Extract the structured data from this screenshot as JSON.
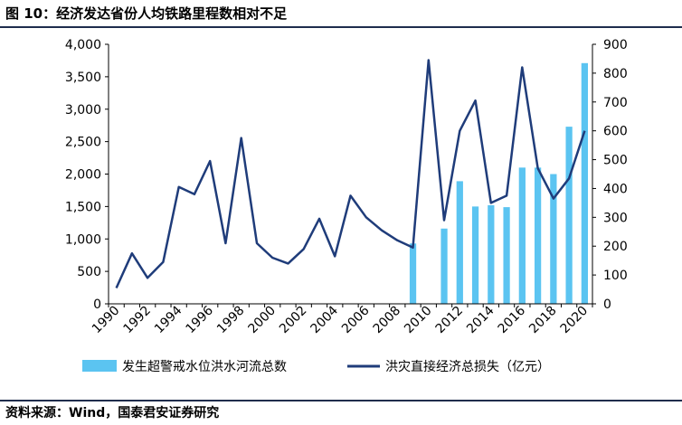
{
  "title": "图 10：经济发达省份人均铁路里程数相对不足",
  "source": "资料来源：Wind，国泰君安证券研究",
  "colors": {
    "bar": "#5bc4f1",
    "line": "#1f3c7a",
    "axis": "#000000"
  },
  "chart_data": {
    "type": "bar+line",
    "x": [
      1990,
      1991,
      1992,
      1993,
      1994,
      1995,
      1996,
      1997,
      1998,
      1999,
      2000,
      2001,
      2002,
      2003,
      2004,
      2005,
      2006,
      2007,
      2008,
      2009,
      2010,
      2011,
      2012,
      2013,
      2014,
      2015,
      2016,
      2017,
      2018,
      2019,
      2020
    ],
    "x_tick_labels": [
      "1990",
      "1992",
      "1994",
      "1996",
      "1998",
      "2000",
      "2002",
      "2004",
      "2006",
      "2008",
      "2010",
      "2012",
      "2014",
      "2016",
      "2018",
      "2020"
    ],
    "left_axis": {
      "ylim": [
        0,
        4000
      ],
      "ticks": [
        "0",
        "500",
        "1,000",
        "1,500",
        "2,000",
        "2,500",
        "3,000",
        "3,500",
        "4,000"
      ]
    },
    "right_axis": {
      "ylim": [
        0,
        900
      ],
      "ticks": [
        "0",
        "100",
        "200",
        "300",
        "400",
        "500",
        "600",
        "700",
        "800",
        "900"
      ]
    },
    "series": [
      {
        "name": "发生超警戒水位洪水河流总数",
        "type": "bar",
        "axis": "left",
        "values": [
          null,
          null,
          null,
          null,
          null,
          null,
          null,
          null,
          null,
          null,
          null,
          null,
          null,
          null,
          null,
          null,
          null,
          null,
          null,
          930,
          null,
          1160,
          1890,
          1500,
          1520,
          1490,
          2100,
          2100,
          2000,
          2730,
          3710
        ]
      },
      {
        "name": "洪灾直接经济总损失（亿元）",
        "type": "line",
        "axis": "right",
        "values": [
          55,
          175,
          90,
          145,
          405,
          380,
          495,
          210,
          575,
          210,
          160,
          140,
          190,
          295,
          165,
          375,
          300,
          255,
          220,
          195,
          845,
          290,
          600,
          705,
          350,
          375,
          820,
          470,
          365,
          435,
          600
        ]
      }
    ],
    "legend_placement": "bottom",
    "grid": false
  }
}
